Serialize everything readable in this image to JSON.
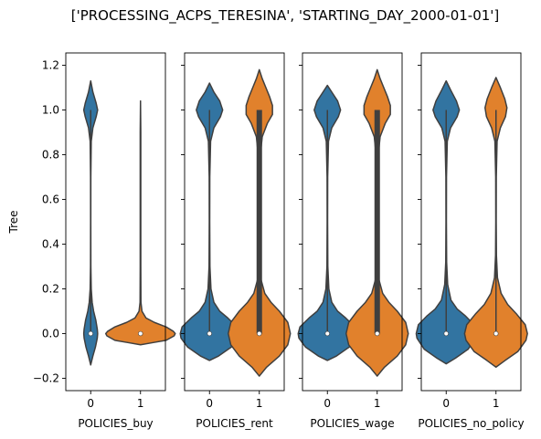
{
  "chart_data": {
    "type": "violin",
    "suptitle": "['PROCESSING_ACPS_TERESINA', 'STARTING_DAY_2000-01-01']",
    "ylabel": "Tree",
    "ylim": [
      -0.255,
      1.255
    ],
    "yticks": [
      -0.2,
      0.0,
      0.2,
      0.4,
      0.6,
      0.8,
      1.0,
      1.2
    ],
    "ytick_labels": [
      "−0.2",
      "0.0",
      "0.2",
      "0.4",
      "0.6",
      "0.8",
      "1.0",
      "1.2"
    ],
    "categories": [
      "0",
      "1"
    ],
    "series_colors": {
      "0": "#3274a1",
      "1": "#e1812c"
    },
    "edge_color": "#3f3f3f",
    "panels": [
      {
        "xlabel": "POLICIES_buy",
        "violins": [
          {
            "category": "0",
            "median": 0.0,
            "q1": 0.0,
            "q3": 0.0,
            "min": 0.0,
            "max": 1.0,
            "profile": [
              [
                -0.14,
                0
              ],
              [
                -0.1,
                0.06
              ],
              [
                -0.06,
                0.13
              ],
              [
                -0.02,
                0.18
              ],
              [
                0.0,
                0.19
              ],
              [
                0.02,
                0.18
              ],
              [
                0.06,
                0.14
              ],
              [
                0.1,
                0.08
              ],
              [
                0.14,
                0.04
              ],
              [
                0.2,
                0.015
              ],
              [
                0.3,
                0.005
              ],
              [
                0.5,
                0.003
              ],
              [
                0.7,
                0.004
              ],
              [
                0.86,
                0.015
              ],
              [
                0.92,
                0.06
              ],
              [
                0.97,
                0.15
              ],
              [
                1.0,
                0.19
              ],
              [
                1.03,
                0.15
              ],
              [
                1.08,
                0.06
              ],
              [
                1.13,
                0
              ]
            ]
          },
          {
            "category": "1",
            "median": 0.0,
            "q1": 0.0,
            "q3": 0.0,
            "min": 0.0,
            "max": 0.0,
            "profile": [
              [
                -0.05,
                0
              ],
              [
                -0.04,
                0.35
              ],
              [
                -0.03,
                0.7
              ],
              [
                -0.01,
                0.92
              ],
              [
                0.0,
                0.95
              ],
              [
                0.01,
                0.9
              ],
              [
                0.03,
                0.7
              ],
              [
                0.05,
                0.38
              ],
              [
                0.07,
                0.15
              ],
              [
                0.1,
                0.04
              ],
              [
                0.14,
                0.012
              ],
              [
                0.3,
                0.008
              ],
              [
                0.6,
                0.008
              ],
              [
                0.9,
                0.008
              ],
              [
                1.04,
                0
              ]
            ]
          }
        ]
      },
      {
        "xlabel": "POLICIES_rent",
        "violins": [
          {
            "category": "0",
            "median": 0.0,
            "q1": 0.0,
            "q3": 0.0,
            "min": 0.0,
            "max": 1.0,
            "profile": [
              [
                -0.12,
                0
              ],
              [
                -0.1,
                0.25
              ],
              [
                -0.06,
                0.6
              ],
              [
                -0.02,
                0.78
              ],
              [
                0.0,
                0.8
              ],
              [
                0.03,
                0.75
              ],
              [
                0.07,
                0.5
              ],
              [
                0.1,
                0.28
              ],
              [
                0.14,
                0.12
              ],
              [
                0.2,
                0.04
              ],
              [
                0.3,
                0.012
              ],
              [
                0.5,
                0.006
              ],
              [
                0.7,
                0.008
              ],
              [
                0.86,
                0.03
              ],
              [
                0.92,
                0.12
              ],
              [
                0.97,
                0.3
              ],
              [
                1.0,
                0.36
              ],
              [
                1.04,
                0.28
              ],
              [
                1.08,
                0.12
              ],
              [
                1.12,
                0
              ]
            ]
          },
          {
            "category": "1",
            "median": 0.0,
            "q1": 0.0,
            "q3": 1.0,
            "min": 0.0,
            "max": 1.0,
            "profile": [
              [
                -0.19,
                0
              ],
              [
                -0.15,
                0.2
              ],
              [
                -0.1,
                0.55
              ],
              [
                -0.05,
                0.78
              ],
              [
                0.0,
                0.85
              ],
              [
                0.05,
                0.78
              ],
              [
                0.1,
                0.55
              ],
              [
                0.14,
                0.32
              ],
              [
                0.18,
                0.15
              ],
              [
                0.24,
                0.05
              ],
              [
                0.35,
                0.02
              ],
              [
                0.6,
                0.015
              ],
              [
                0.8,
                0.03
              ],
              [
                0.88,
                0.08
              ],
              [
                0.94,
                0.22
              ],
              [
                0.98,
                0.36
              ],
              [
                1.02,
                0.36
              ],
              [
                1.06,
                0.28
              ],
              [
                1.1,
                0.18
              ],
              [
                1.14,
                0.08
              ],
              [
                1.18,
                0
              ]
            ]
          }
        ]
      },
      {
        "xlabel": "POLICIES_wage",
        "violins": [
          {
            "category": "0",
            "median": 0.0,
            "q1": 0.0,
            "q3": 0.0,
            "min": 0.0,
            "max": 1.0,
            "profile": [
              [
                -0.12,
                0
              ],
              [
                -0.1,
                0.25
              ],
              [
                -0.06,
                0.6
              ],
              [
                -0.02,
                0.78
              ],
              [
                0.0,
                0.8
              ],
              [
                0.03,
                0.75
              ],
              [
                0.07,
                0.5
              ],
              [
                0.1,
                0.28
              ],
              [
                0.14,
                0.12
              ],
              [
                0.2,
                0.04
              ],
              [
                0.3,
                0.012
              ],
              [
                0.5,
                0.006
              ],
              [
                0.7,
                0.008
              ],
              [
                0.86,
                0.03
              ],
              [
                0.92,
                0.12
              ],
              [
                0.97,
                0.3
              ],
              [
                1.0,
                0.36
              ],
              [
                1.04,
                0.28
              ],
              [
                1.08,
                0.12
              ],
              [
                1.11,
                0
              ]
            ]
          },
          {
            "category": "1",
            "median": 0.0,
            "q1": 0.0,
            "q3": 1.0,
            "min": 0.0,
            "max": 1.0,
            "profile": [
              [
                -0.19,
                0
              ],
              [
                -0.15,
                0.2
              ],
              [
                -0.1,
                0.55
              ],
              [
                -0.05,
                0.78
              ],
              [
                0.0,
                0.85
              ],
              [
                0.05,
                0.78
              ],
              [
                0.1,
                0.55
              ],
              [
                0.14,
                0.32
              ],
              [
                0.18,
                0.15
              ],
              [
                0.24,
                0.05
              ],
              [
                0.35,
                0.02
              ],
              [
                0.6,
                0.015
              ],
              [
                0.8,
                0.03
              ],
              [
                0.88,
                0.08
              ],
              [
                0.94,
                0.22
              ],
              [
                0.98,
                0.36
              ],
              [
                1.02,
                0.36
              ],
              [
                1.06,
                0.28
              ],
              [
                1.1,
                0.18
              ],
              [
                1.14,
                0.08
              ],
              [
                1.18,
                0
              ]
            ]
          }
        ]
      },
      {
        "xlabel": "POLICIES_no_policy",
        "violins": [
          {
            "category": "0",
            "median": 0.0,
            "q1": 0.0,
            "q3": 0.0,
            "min": 0.0,
            "max": 1.0,
            "profile": [
              [
                -0.135,
                0
              ],
              [
                -0.11,
                0.25
              ],
              [
                -0.07,
                0.6
              ],
              [
                -0.02,
                0.8
              ],
              [
                0.0,
                0.82
              ],
              [
                0.04,
                0.76
              ],
              [
                0.08,
                0.52
              ],
              [
                0.11,
                0.3
              ],
              [
                0.15,
                0.13
              ],
              [
                0.22,
                0.04
              ],
              [
                0.32,
                0.012
              ],
              [
                0.5,
                0.006
              ],
              [
                0.7,
                0.008
              ],
              [
                0.86,
                0.03
              ],
              [
                0.92,
                0.12
              ],
              [
                0.97,
                0.3
              ],
              [
                1.0,
                0.36
              ],
              [
                1.04,
                0.28
              ],
              [
                1.09,
                0.12
              ],
              [
                1.13,
                0
              ]
            ]
          },
          {
            "category": "1",
            "median": 0.0,
            "q1": 0.0,
            "q3": 0.0,
            "min": 0.0,
            "max": 1.0,
            "profile": [
              [
                -0.15,
                0
              ],
              [
                -0.12,
                0.25
              ],
              [
                -0.08,
                0.6
              ],
              [
                -0.03,
                0.82
              ],
              [
                0.0,
                0.86
              ],
              [
                0.04,
                0.8
              ],
              [
                0.09,
                0.55
              ],
              [
                0.13,
                0.32
              ],
              [
                0.18,
                0.14
              ],
              [
                0.25,
                0.04
              ],
              [
                0.35,
                0.012
              ],
              [
                0.5,
                0.006
              ],
              [
                0.7,
                0.008
              ],
              [
                0.86,
                0.03
              ],
              [
                0.92,
                0.12
              ],
              [
                0.97,
                0.26
              ],
              [
                1.01,
                0.3
              ],
              [
                1.05,
                0.24
              ],
              [
                1.1,
                0.12
              ],
              [
                1.145,
                0
              ]
            ]
          }
        ]
      }
    ]
  }
}
